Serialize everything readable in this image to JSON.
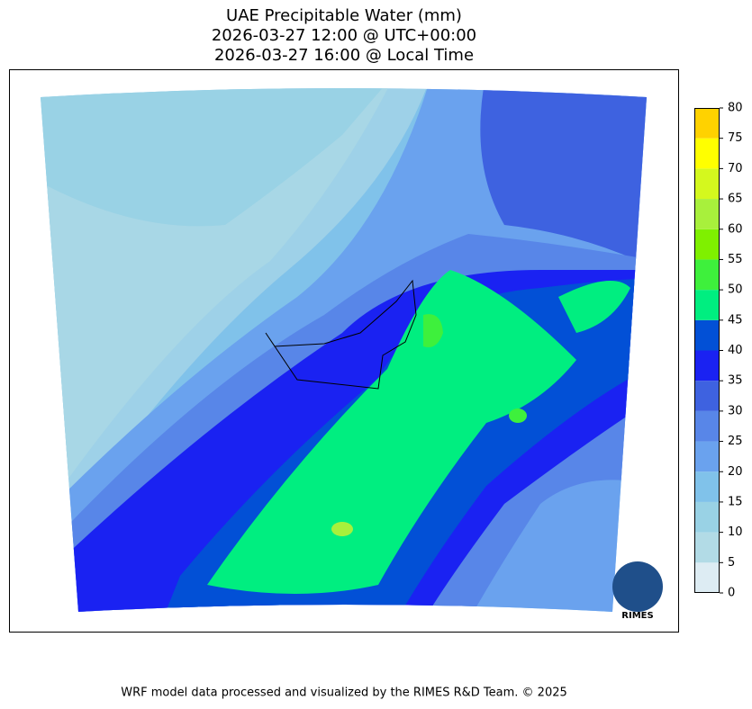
{
  "header": {
    "title_lines": [
      "UAE Precipitable Water (mm)",
      "2026-03-27 12:00 @ UTC+00:00",
      "2026-03-27 16:00 @ Local Time"
    ]
  },
  "colorbar": {
    "levels": [
      0,
      5,
      10,
      15,
      20,
      25,
      30,
      35,
      40,
      45,
      50,
      55,
      60,
      65,
      70,
      75,
      80
    ],
    "colors": [
      "#ddecf3",
      "#b2dbe6",
      "#99d2e5",
      "#80c2ea",
      "#6aa2ee",
      "#5886e8",
      "#3e62e0",
      "#1a22f2",
      "#0250d6",
      "#00ee80",
      "#3ef03c",
      "#7ff000",
      "#a8f03c",
      "#d4f81e",
      "#ffff00",
      "#ffd200"
    ]
  },
  "logo": "RIMES",
  "footer": "WRF model data processed and visualized by the RIMES R&D Team. © 2025"
}
